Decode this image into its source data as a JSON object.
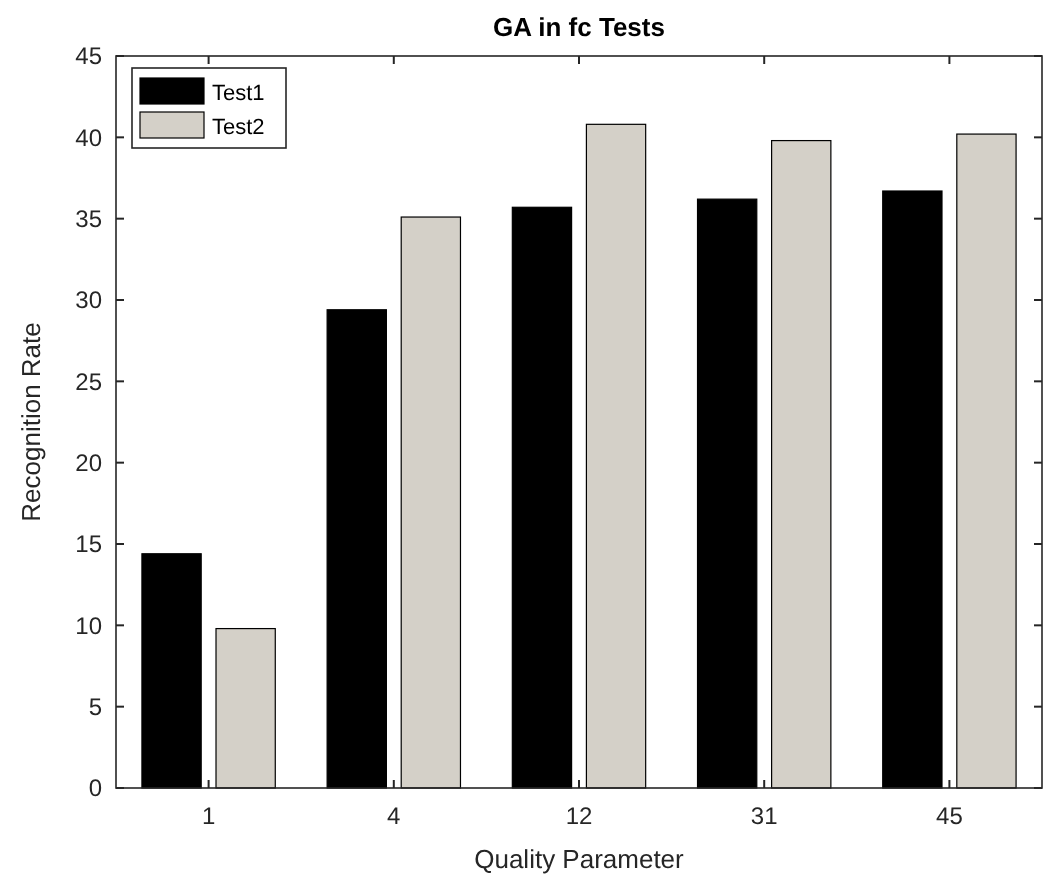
{
  "chart_data": {
    "type": "bar",
    "title": "GA in fc Tests",
    "xlabel": "Quality Parameter",
    "ylabel": "Recognition Rate",
    "categories": [
      "1",
      "4",
      "12",
      "31",
      "45"
    ],
    "series": [
      {
        "name": "Test1",
        "color": "#000000",
        "values": [
          14.4,
          29.4,
          35.7,
          36.2,
          36.7
        ]
      },
      {
        "name": "Test2",
        "color": "#d4d0c8",
        "values": [
          9.8,
          35.1,
          40.8,
          39.8,
          40.2
        ]
      }
    ],
    "ylim": [
      0,
      45
    ],
    "yticks": [
      0,
      5,
      10,
      15,
      20,
      25,
      30,
      35,
      40,
      45
    ],
    "grid": false,
    "legend": "top left"
  }
}
